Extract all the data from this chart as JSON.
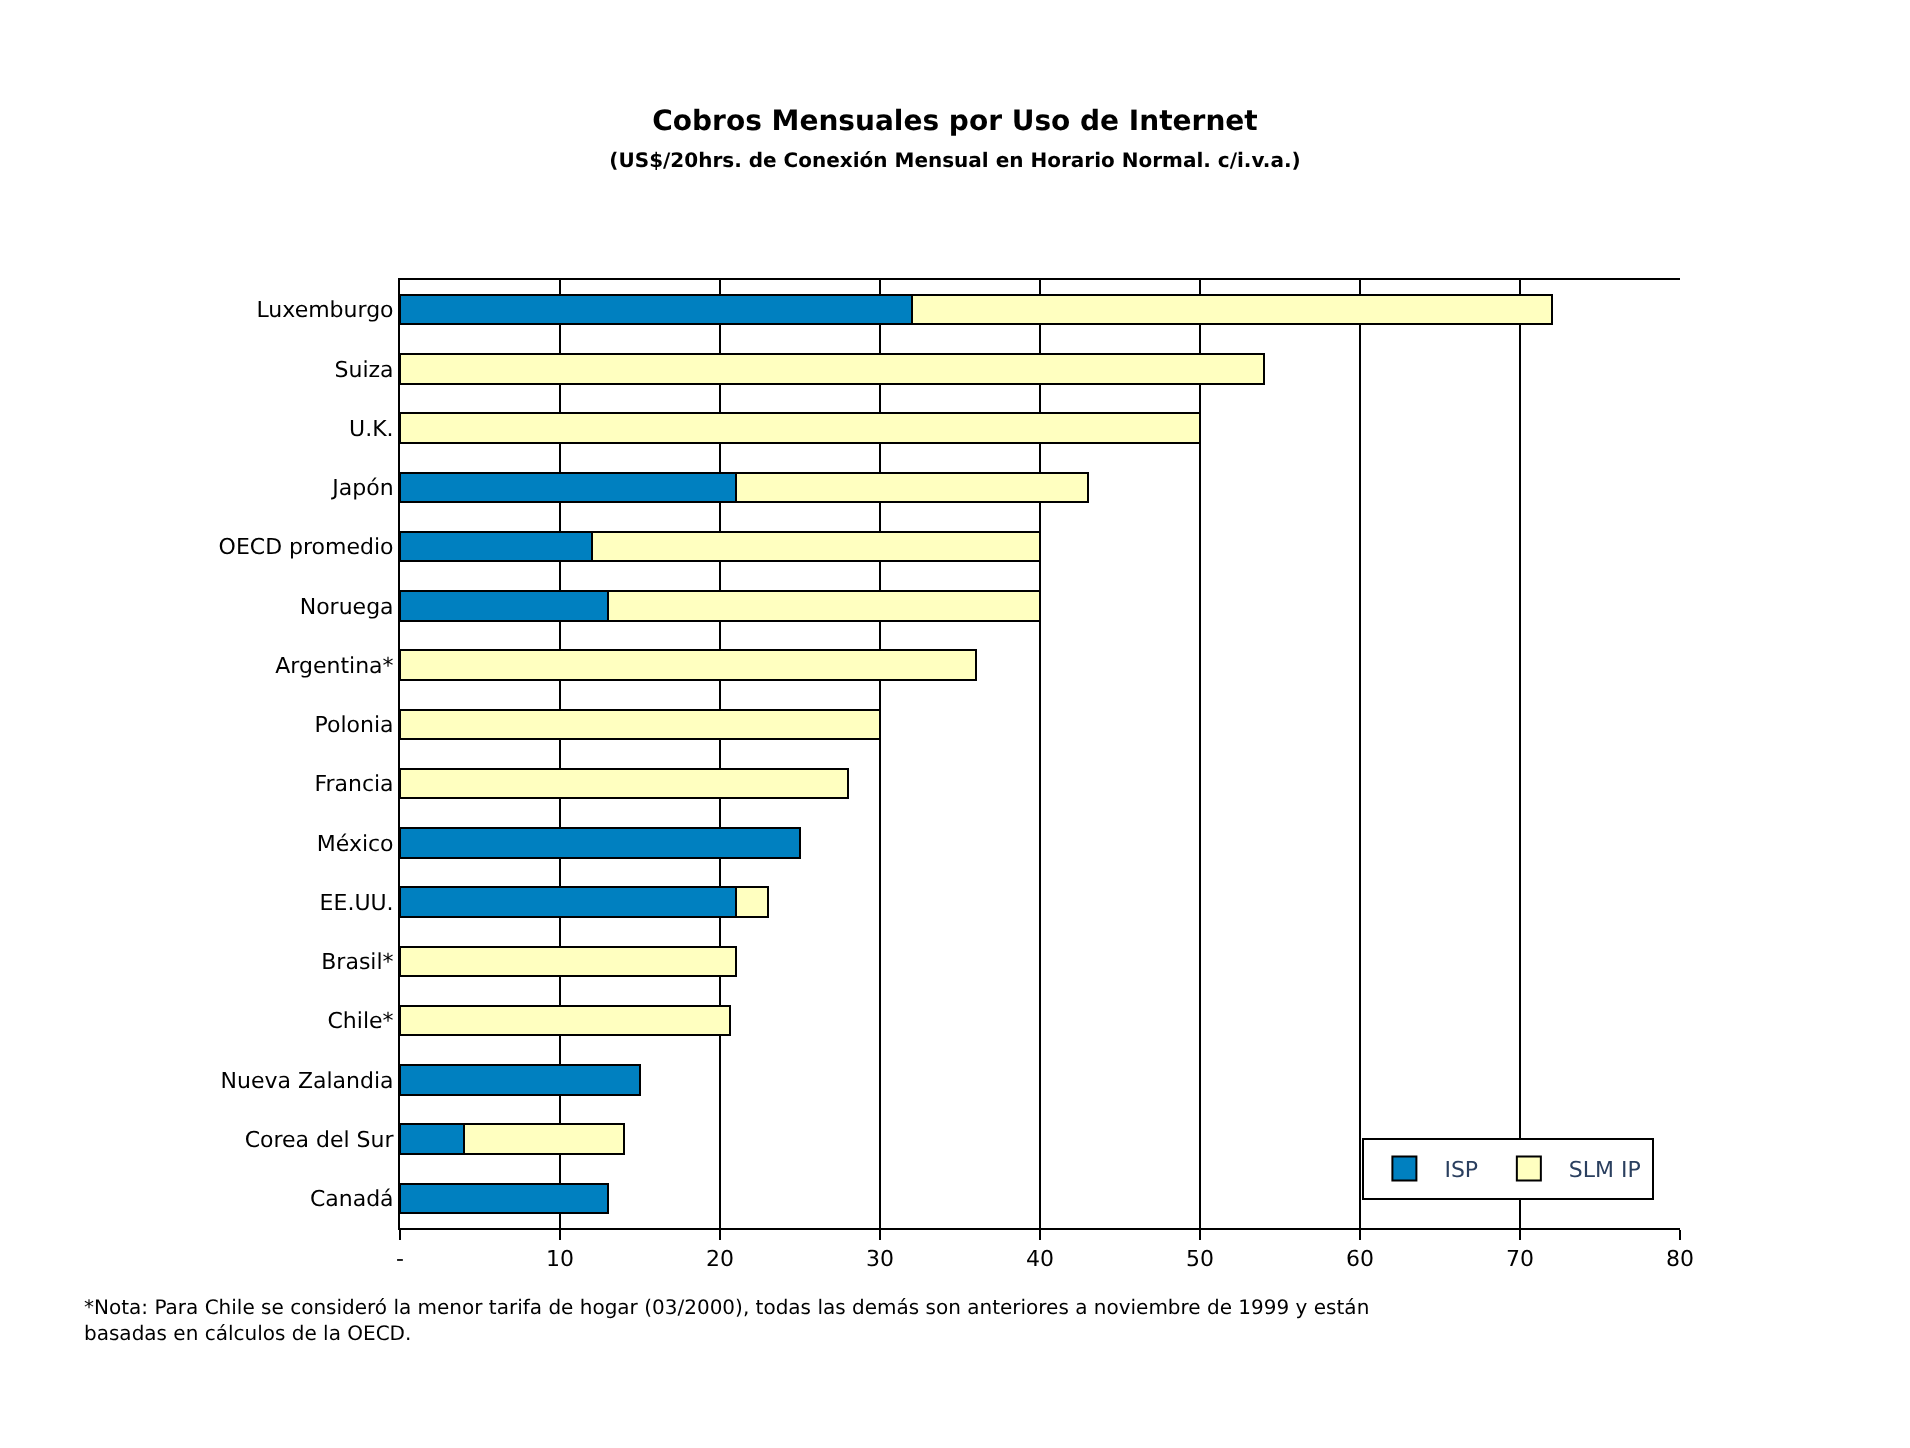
{
  "chart_data": {
    "type": "bar",
    "orientation": "horizontal",
    "stacked": true,
    "title": "Cobros Mensuales por Uso de Internet",
    "subtitle": "(US$/20hrs. de Conexión Mensual en Horario Normal. c/i.v.a.)",
    "categories": [
      "Luxemburgo",
      "Suiza",
      "U.K.",
      "Japón",
      "OECD promedio",
      "Noruega",
      "Argentina*",
      "Polonia",
      "Francia",
      "México",
      "EE.UU.",
      "Brasil*",
      "Chile*",
      "Nueva Zalandia",
      "Corea del Sur",
      "Canadá"
    ],
    "series": [
      {
        "name": "ISP",
        "color": "#0080c0",
        "values": [
          32,
          null,
          null,
          21,
          12,
          13,
          null,
          null,
          null,
          25,
          21,
          null,
          null,
          15,
          4,
          13
        ]
      },
      {
        "name": "SLM IP",
        "color": "#ffffc0",
        "values": [
          40,
          54,
          50,
          22,
          28,
          27,
          36,
          30,
          28,
          null,
          2,
          21,
          20.6,
          null,
          10,
          null
        ]
      }
    ],
    "xlim": [
      0,
      80
    ],
    "xticks": [
      {
        "value": 0,
        "label": "-"
      },
      10,
      20,
      30,
      40,
      50,
      60,
      70,
      80
    ],
    "grid": "x",
    "legend": "bottom right",
    "annotations": [
      "*Nota: Para Chile se consideró la menor tarifa de hogar (03/2000), todas las demás son anteriores a noviembre de 1999 y están basadas en cálculos de la OECD."
    ]
  }
}
